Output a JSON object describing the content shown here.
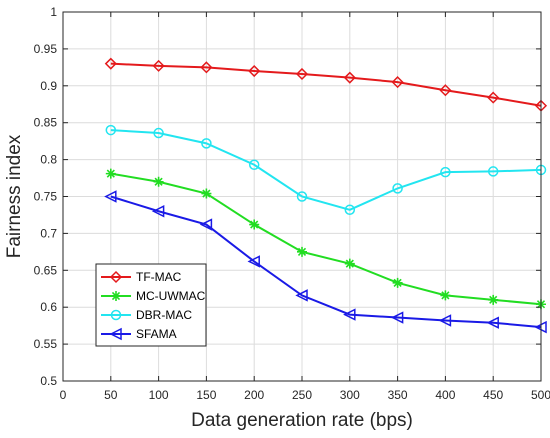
{
  "chart_data": {
    "type": "line",
    "xlabel": "Data generation rate (bps)",
    "ylabel": "Fairness index",
    "xlim": [
      0,
      500
    ],
    "ylim": [
      0.5,
      1
    ],
    "xticks": [
      0,
      50,
      100,
      150,
      200,
      250,
      300,
      350,
      400,
      450,
      500
    ],
    "yticks": [
      0.5,
      0.55,
      0.6,
      0.65,
      0.7,
      0.75,
      0.8,
      0.85,
      0.9,
      0.95,
      1
    ],
    "x": [
      50,
      100,
      150,
      200,
      250,
      300,
      350,
      400,
      450,
      500
    ],
    "grid": true,
    "legend_position": "bottom-left",
    "series": [
      {
        "name": "TF-MAC",
        "color": "#e41a1c",
        "marker": "diamond",
        "values": [
          0.93,
          0.927,
          0.925,
          0.92,
          0.916,
          0.911,
          0.905,
          0.894,
          0.884,
          0.873
        ]
      },
      {
        "name": "MC-UWMAC",
        "color": "#22dd22",
        "marker": "asterisk",
        "values": [
          0.781,
          0.77,
          0.754,
          0.712,
          0.675,
          0.659,
          0.633,
          0.616,
          0.61,
          0.604
        ]
      },
      {
        "name": "DBR-MAC",
        "color": "#22e5f0",
        "marker": "circle",
        "values": [
          0.84,
          0.836,
          0.822,
          0.793,
          0.75,
          0.732,
          0.761,
          0.783,
          0.784,
          0.786
        ]
      },
      {
        "name": "SFAMA",
        "color": "#1a1ae6",
        "marker": "triangle-left",
        "values": [
          0.75,
          0.73,
          0.712,
          0.662,
          0.616,
          0.59,
          0.586,
          0.582,
          0.579,
          0.573
        ]
      }
    ]
  }
}
